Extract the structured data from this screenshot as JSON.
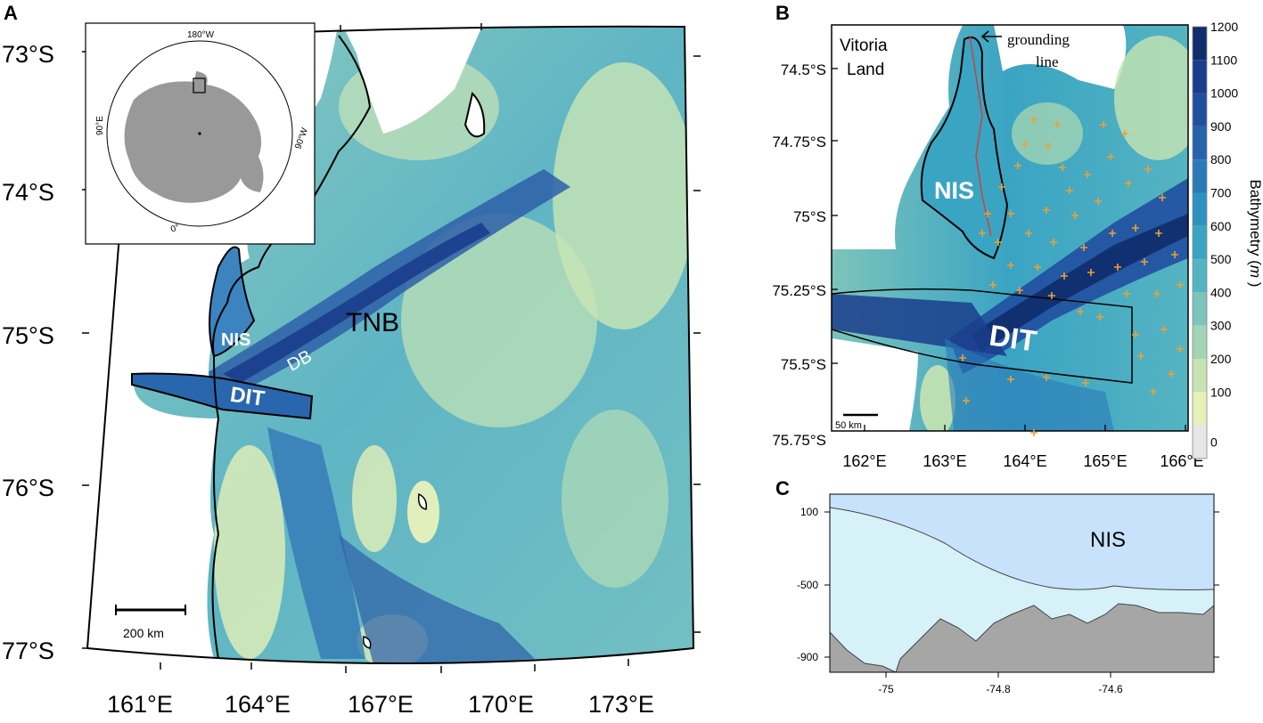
{
  "panels": {
    "a": {
      "letter": "A",
      "lat_labels": [
        "73°S",
        "74°S",
        "75°S",
        "76°S",
        "77°S"
      ],
      "lon_labels": [
        "161°E",
        "164°E",
        "167°E",
        "170°E",
        "173°E"
      ],
      "features": {
        "nis": "NIS",
        "db": "DB",
        "tnb": "TNB",
        "dit": "DIT"
      },
      "scale_bar": "200 km",
      "inset": {
        "top": "180°W",
        "left": "90°E",
        "right": "90°W",
        "bottom": "0°"
      }
    },
    "b": {
      "letter": "B",
      "region": [
        "Vitoria",
        "Land"
      ],
      "grounding": [
        "grounding",
        "line"
      ],
      "lat_labels": [
        "74.5°S",
        "74.75°S",
        "75°S",
        "75.25°S",
        "75.5°S",
        "75.75°S"
      ],
      "lon_labels": [
        "162°E",
        "163°E",
        "164°E",
        "165°E",
        "166°E"
      ],
      "features": {
        "nis": "NIS",
        "dit": "DIT"
      },
      "scale_bar": "50 km",
      "colorbar": {
        "ticks": [
          "1200",
          "1100",
          "1000",
          "900",
          "800",
          "700",
          "600",
          "500",
          "400",
          "300",
          "200",
          "100",
          "0"
        ],
        "label_prefix": "Bathymetry (",
        "label_unit": "m",
        "label_suffix": " )",
        "colors": [
          "#102c6b",
          "#1a3d8c",
          "#204fa0",
          "#2563ad",
          "#2a7ab8",
          "#2e92c0",
          "#3aa4c3",
          "#55b4c2",
          "#7cc4bc",
          "#a3d4b4",
          "#c6e3b1",
          "#e6f1b8",
          "#e6e6e6"
        ]
      }
    },
    "c": {
      "letter": "C",
      "label": "NIS",
      "y_ticks": [
        "100",
        "-500",
        "-900"
      ],
      "x_ticks": [
        "-75",
        "-74.8",
        "-74.6"
      ]
    }
  }
}
